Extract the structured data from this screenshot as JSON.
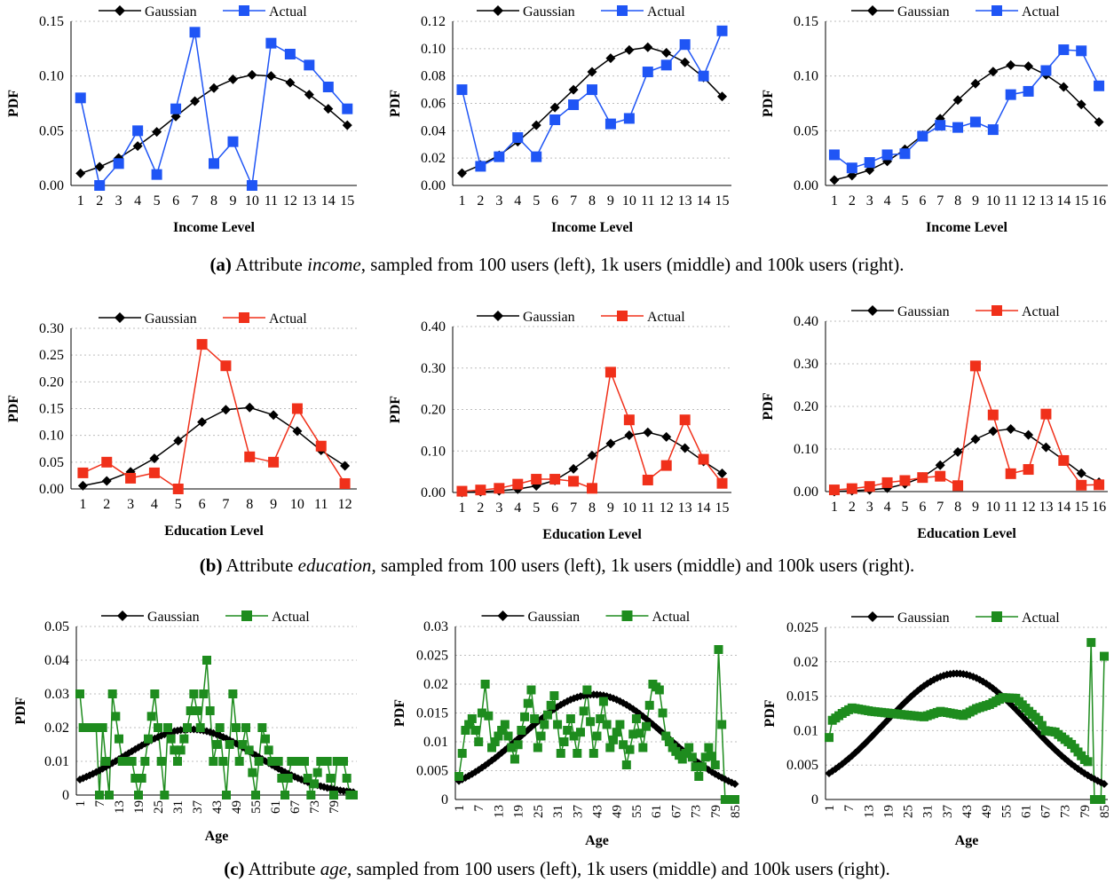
{
  "legend_gaussian": "Gaussian",
  "legend_actual": "Actual",
  "ylabel": "PDF",
  "captions": [
    {
      "label": "(a)",
      "pre": " Attribute ",
      "attr": "income",
      "post": ", sampled from 100 users (left), 1k users (middle) and 100k users (right)."
    },
    {
      "label": "(b)",
      "pre": " Attribute ",
      "attr": "education",
      "post": ", sampled from 100 users (left), 1k users (middle) and 100k users (right)."
    },
    {
      "label": "(c)",
      "pre": " Attribute ",
      "attr": "age",
      "post": ", sampled from 100 users (left), 1k users (middle) and 100k users (right)."
    }
  ],
  "colors": {
    "gaussian": "#000000",
    "income": "#1f55f5",
    "education": "#f0301a",
    "age": "#1e8c1e",
    "grid": "#bdbdbd"
  },
  "chart_data": [
    {
      "type": "line",
      "row": "income",
      "xlabel": "Income Level",
      "ylabel": "PDF",
      "x": [
        1,
        2,
        3,
        4,
        5,
        6,
        7,
        8,
        9,
        10,
        11,
        12,
        13,
        14,
        15
      ],
      "ylim": [
        0,
        0.15
      ],
      "yticks": [
        0,
        0.05,
        0.1,
        0.15
      ],
      "ytick_labels": [
        "0.00",
        "0.05",
        "0.10",
        "0.15"
      ],
      "series": [
        {
          "name": "Gaussian",
          "values": [
            0.011,
            0.017,
            0.025,
            0.036,
            0.049,
            0.063,
            0.077,
            0.089,
            0.097,
            0.101,
            0.1,
            0.094,
            0.083,
            0.07,
            0.055
          ]
        },
        {
          "name": "Actual",
          "values": [
            0.08,
            0.0,
            0.02,
            0.05,
            0.01,
            0.07,
            0.14,
            0.02,
            0.04,
            0.0,
            0.13,
            0.12,
            0.11,
            0.09,
            0.07
          ]
        }
      ]
    },
    {
      "type": "line",
      "row": "income",
      "xlabel": "Income Level",
      "ylabel": "PDF",
      "x": [
        1,
        2,
        3,
        4,
        5,
        6,
        7,
        8,
        9,
        10,
        11,
        12,
        13,
        14,
        15
      ],
      "ylim": [
        0,
        0.12
      ],
      "yticks": [
        0,
        0.02,
        0.04,
        0.06,
        0.08,
        0.1,
        0.12
      ],
      "ytick_labels": [
        "0.00",
        "0.02",
        "0.04",
        "0.06",
        "0.08",
        "0.10",
        "0.12"
      ],
      "series": [
        {
          "name": "Gaussian",
          "values": [
            0.009,
            0.015,
            0.022,
            0.032,
            0.044,
            0.057,
            0.07,
            0.083,
            0.093,
            0.099,
            0.101,
            0.097,
            0.09,
            0.079,
            0.065
          ]
        },
        {
          "name": "Actual",
          "values": [
            0.07,
            0.014,
            0.021,
            0.035,
            0.021,
            0.048,
            0.059,
            0.07,
            0.045,
            0.049,
            0.083,
            0.088,
            0.103,
            0.08,
            0.113
          ]
        }
      ]
    },
    {
      "type": "line",
      "row": "income",
      "xlabel": "Income Level",
      "ylabel": "PDF",
      "x": [
        1,
        2,
        3,
        4,
        5,
        6,
        7,
        8,
        9,
        10,
        11,
        12,
        13,
        14,
        15,
        16
      ],
      "ylim": [
        0,
        0.15
      ],
      "yticks": [
        0,
        0.05,
        0.1,
        0.15
      ],
      "ytick_labels": [
        "0.00",
        "0.05",
        "0.10",
        "0.15"
      ],
      "series": [
        {
          "name": "Gaussian",
          "values": [
            0.005,
            0.009,
            0.014,
            0.022,
            0.033,
            0.046,
            0.061,
            0.078,
            0.093,
            0.104,
            0.11,
            0.109,
            0.101,
            0.09,
            0.074,
            0.058
          ]
        },
        {
          "name": "Actual",
          "values": [
            0.028,
            0.016,
            0.021,
            0.028,
            0.029,
            0.045,
            0.055,
            0.053,
            0.058,
            0.051,
            0.083,
            0.086,
            0.105,
            0.124,
            0.123,
            0.091
          ]
        }
      ]
    },
    {
      "type": "line",
      "row": "education",
      "xlabel": "Education Level",
      "ylabel": "PDF",
      "x": [
        1,
        2,
        3,
        4,
        5,
        6,
        7,
        8,
        9,
        10,
        11,
        12
      ],
      "ylim": [
        0,
        0.3
      ],
      "yticks": [
        0,
        0.05,
        0.1,
        0.15,
        0.2,
        0.25,
        0.3
      ],
      "ytick_labels": [
        "0.00",
        "0.05",
        "0.10",
        "0.15",
        "0.20",
        "0.25",
        "0.30"
      ],
      "series": [
        {
          "name": "Gaussian",
          "values": [
            0.006,
            0.015,
            0.032,
            0.057,
            0.09,
            0.125,
            0.148,
            0.152,
            0.138,
            0.108,
            0.072,
            0.043
          ]
        },
        {
          "name": "Actual",
          "values": [
            0.03,
            0.05,
            0.02,
            0.03,
            0.0,
            0.27,
            0.23,
            0.06,
            0.05,
            0.15,
            0.08,
            0.01
          ]
        }
      ]
    },
    {
      "type": "line",
      "row": "education",
      "xlabel": "Education Level",
      "ylabel": "PDF",
      "x": [
        1,
        2,
        3,
        4,
        5,
        6,
        7,
        8,
        9,
        10,
        11,
        12,
        13,
        14,
        15
      ],
      "ylim": [
        0,
        0.4
      ],
      "yticks": [
        0,
        0.1,
        0.2,
        0.3,
        0.4
      ],
      "ytick_labels": [
        "0.00",
        "0.10",
        "0.20",
        "0.30",
        "0.40"
      ],
      "series": [
        {
          "name": "Gaussian",
          "values": [
            0.0,
            0.002,
            0.004,
            0.008,
            0.016,
            0.029,
            0.057,
            0.089,
            0.118,
            0.138,
            0.145,
            0.134,
            0.107,
            0.075,
            0.046
          ]
        },
        {
          "name": "Actual",
          "values": [
            0.003,
            0.006,
            0.01,
            0.02,
            0.032,
            0.032,
            0.027,
            0.01,
            0.29,
            0.175,
            0.03,
            0.065,
            0.175,
            0.08,
            0.022
          ]
        }
      ]
    },
    {
      "type": "line",
      "row": "education",
      "xlabel": "Education Level",
      "ylabel": "PDF",
      "x": [
        1,
        2,
        3,
        4,
        5,
        6,
        7,
        8,
        9,
        10,
        11,
        12,
        13,
        14,
        15,
        16
      ],
      "ylim": [
        0,
        0.4
      ],
      "yticks": [
        0,
        0.1,
        0.2,
        0.3,
        0.4
      ],
      "ytick_labels": [
        "0.00",
        "0.10",
        "0.20",
        "0.30",
        "0.40"
      ],
      "series": [
        {
          "name": "Gaussian",
          "values": [
            0.0,
            0.002,
            0.004,
            0.008,
            0.018,
            0.034,
            0.062,
            0.093,
            0.123,
            0.142,
            0.147,
            0.133,
            0.104,
            0.074,
            0.043,
            0.022
          ]
        },
        {
          "name": "Actual",
          "values": [
            0.004,
            0.007,
            0.012,
            0.021,
            0.026,
            0.033,
            0.036,
            0.014,
            0.295,
            0.18,
            0.042,
            0.052,
            0.182,
            0.073,
            0.015,
            0.016
          ]
        }
      ]
    },
    {
      "type": "line",
      "row": "age",
      "xlabel": "Age",
      "ylabel": "PDF",
      "x_start": 1,
      "x_end": 85,
      "xtick_labels": [
        "1",
        "7",
        "13",
        "19",
        "25",
        "31",
        "37",
        "43",
        "49",
        "55",
        "61",
        "67",
        "73",
        "79"
      ],
      "ylim": [
        0,
        0.05
      ],
      "yticks": [
        0,
        0.01,
        0.02,
        0.03,
        0.04,
        0.05
      ],
      "ytick_labels": [
        "0",
        "0.01",
        "0.02",
        "0.03",
        "0.04",
        "0.05"
      ],
      "gaussian": {
        "mu": 35,
        "sigma": 20,
        "scale": 0.0195,
        "count": 85
      },
      "actual_keys": [
        [
          1,
          0.03
        ],
        [
          2,
          0.02
        ],
        [
          6,
          0.02
        ],
        [
          7,
          0.0
        ],
        [
          8,
          0.02
        ],
        [
          10,
          0.0
        ],
        [
          11,
          0.03
        ],
        [
          14,
          0.01
        ],
        [
          17,
          0.01
        ],
        [
          19,
          0.0
        ],
        [
          21,
          0.01
        ],
        [
          24,
          0.03
        ],
        [
          27,
          0.0
        ],
        [
          28,
          0.02
        ],
        [
          31,
          0.01
        ],
        [
          34,
          0.02
        ],
        [
          36,
          0.03
        ],
        [
          38,
          0.02
        ],
        [
          40,
          0.04
        ],
        [
          42,
          0.01
        ],
        [
          44,
          0.02
        ],
        [
          46,
          0.0
        ],
        [
          48,
          0.03
        ],
        [
          50,
          0.01
        ],
        [
          52,
          0.02
        ],
        [
          55,
          0.0
        ],
        [
          57,
          0.02
        ],
        [
          60,
          0.01
        ],
        [
          62,
          0.01
        ],
        [
          64,
          0.0
        ],
        [
          66,
          0.01
        ],
        [
          70,
          0.01
        ],
        [
          72,
          0.0
        ],
        [
          75,
          0.01
        ],
        [
          77,
          0.01
        ],
        [
          79,
          0.0
        ],
        [
          80,
          0.01
        ],
        [
          82,
          0.01
        ],
        [
          84,
          0.0
        ],
        [
          85,
          0.0
        ]
      ]
    },
    {
      "type": "line",
      "row": "age",
      "xlabel": "Age",
      "ylabel": "PDF",
      "x_start": 1,
      "x_end": 85,
      "xtick_labels": [
        "1",
        "7",
        "13",
        "19",
        "25",
        "31",
        "37",
        "43",
        "49",
        "55",
        "61",
        "67",
        "73",
        "79",
        "85"
      ],
      "ylim": [
        0,
        0.03
      ],
      "yticks": [
        0,
        0.005,
        0.01,
        0.015,
        0.02,
        0.025,
        0.03
      ],
      "ytick_labels": [
        "0",
        "0.005",
        "0.01",
        "0.015",
        "0.02",
        "0.025",
        "0.03"
      ],
      "gaussian": {
        "mu": 42,
        "sigma": 22,
        "scale": 0.0182,
        "count": 85
      },
      "actual_keys": [
        [
          1,
          0.004
        ],
        [
          3,
          0.012
        ],
        [
          5,
          0.014
        ],
        [
          7,
          0.01
        ],
        [
          9,
          0.02
        ],
        [
          11,
          0.009
        ],
        [
          13,
          0.011
        ],
        [
          15,
          0.013
        ],
        [
          18,
          0.007
        ],
        [
          20,
          0.012
        ],
        [
          23,
          0.019
        ],
        [
          25,
          0.009
        ],
        [
          27,
          0.013
        ],
        [
          30,
          0.018
        ],
        [
          32,
          0.008
        ],
        [
          35,
          0.014
        ],
        [
          37,
          0.008
        ],
        [
          40,
          0.019
        ],
        [
          42,
          0.008
        ],
        [
          45,
          0.017
        ],
        [
          47,
          0.009
        ],
        [
          50,
          0.013
        ],
        [
          52,
          0.006
        ],
        [
          55,
          0.014
        ],
        [
          57,
          0.009
        ],
        [
          60,
          0.02
        ],
        [
          62,
          0.019
        ],
        [
          64,
          0.011
        ],
        [
          66,
          0.009
        ],
        [
          69,
          0.007
        ],
        [
          71,
          0.009
        ],
        [
          74,
          0.004
        ],
        [
          77,
          0.009
        ],
        [
          79,
          0.006
        ],
        [
          80,
          0.026
        ],
        [
          82,
          0.0
        ],
        [
          85,
          0.0
        ]
      ]
    },
    {
      "type": "line",
      "row": "age",
      "xlabel": "Age",
      "ylabel": "PDF",
      "x_start": 1,
      "x_end": 85,
      "xtick_labels": [
        "1",
        "7",
        "13",
        "19",
        "25",
        "31",
        "37",
        "43",
        "49",
        "55",
        "61",
        "67",
        "73",
        "79",
        "85"
      ],
      "ylim": [
        0,
        0.025
      ],
      "yticks": [
        0,
        0.005,
        0.01,
        0.015,
        0.02,
        0.025
      ],
      "ytick_labels": [
        "0",
        "0.005",
        "0.01",
        "0.015",
        "0.02",
        "0.025"
      ],
      "gaussian": {
        "mu": 40,
        "sigma": 22,
        "scale": 0.0183,
        "count": 85
      },
      "actual_keys": [
        [
          1,
          0.009
        ],
        [
          2,
          0.0115
        ],
        [
          5,
          0.0125
        ],
        [
          8,
          0.0133
        ],
        [
          14,
          0.0128
        ],
        [
          20,
          0.0125
        ],
        [
          30,
          0.012
        ],
        [
          35,
          0.0128
        ],
        [
          42,
          0.0122
        ],
        [
          46,
          0.0132
        ],
        [
          50,
          0.0138
        ],
        [
          54,
          0.0148
        ],
        [
          58,
          0.0147
        ],
        [
          62,
          0.0128
        ],
        [
          65,
          0.0115
        ],
        [
          67,
          0.01
        ],
        [
          70,
          0.0098
        ],
        [
          75,
          0.008
        ],
        [
          79,
          0.0058
        ],
        [
          80,
          0.0055
        ],
        [
          81,
          0.0228
        ],
        [
          82,
          0.0
        ],
        [
          84,
          0.0
        ],
        [
          85,
          0.0208
        ]
      ]
    }
  ]
}
